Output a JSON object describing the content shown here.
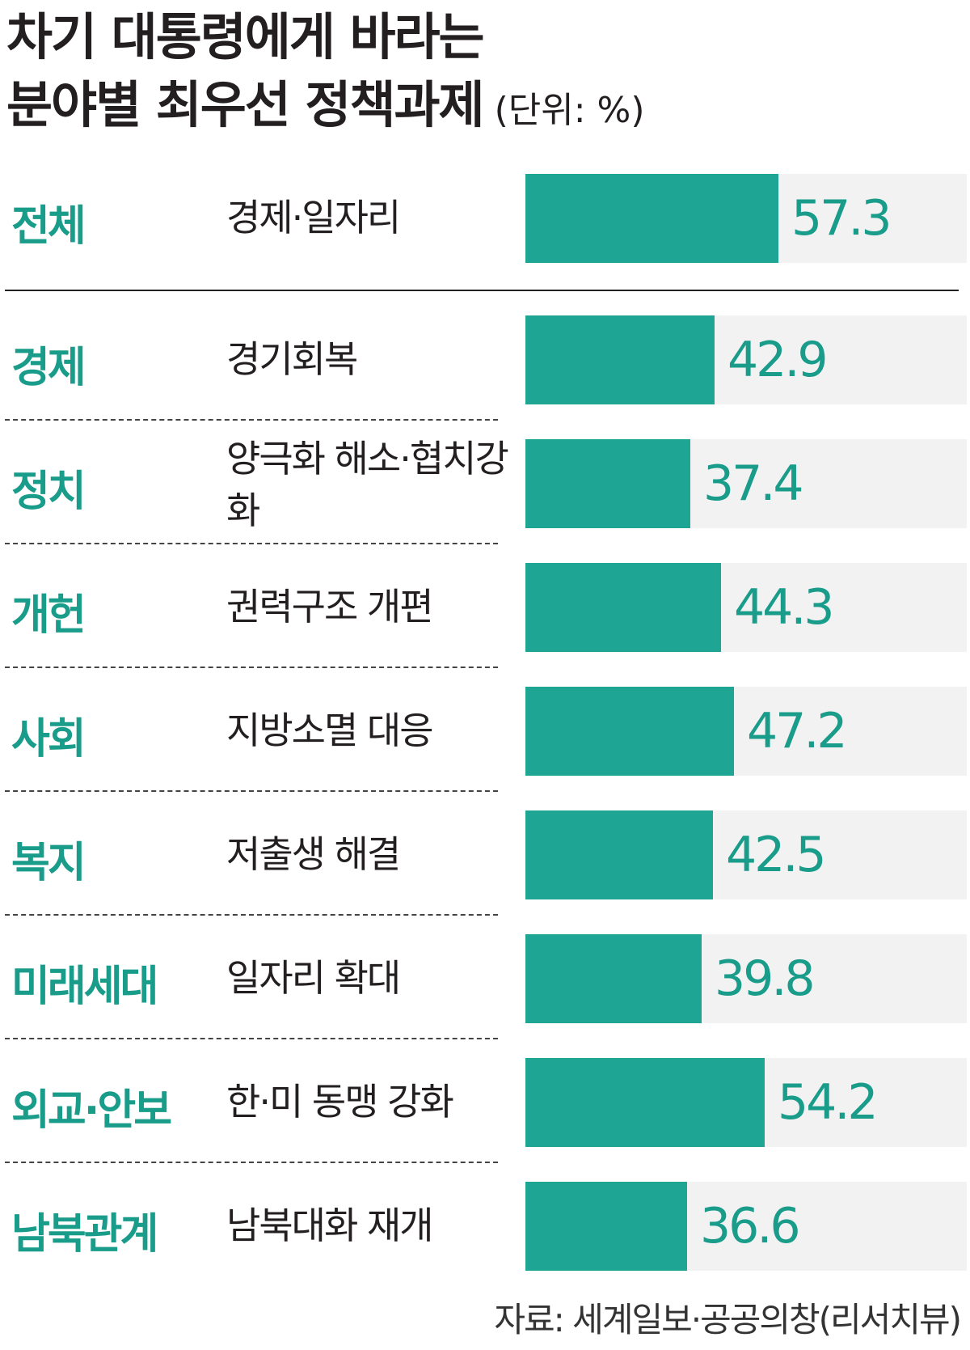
{
  "chart_data": {
    "type": "bar",
    "title_line1": "차기 대통령에게 바라는",
    "title_line2": "분야별 최우선 정책과제",
    "unit": "(단위: %)",
    "xlim": [
      0,
      100
    ],
    "rows": [
      {
        "category": "전체",
        "policy": "경제·일자리",
        "value": 57.3
      },
      {
        "category": "경제",
        "policy": "경기회복",
        "value": 42.9
      },
      {
        "category": "정치",
        "policy": "양극화 해소·협치강화",
        "value": 37.4
      },
      {
        "category": "개헌",
        "policy": "권력구조 개편",
        "value": 44.3
      },
      {
        "category": "사회",
        "policy": "지방소멸 대응",
        "value": 47.2
      },
      {
        "category": "복지",
        "policy": "저출생 해결",
        "value": 42.5
      },
      {
        "category": "미래세대",
        "policy": "일자리 확대",
        "value": 39.8
      },
      {
        "category": "외교·안보",
        "policy": "한·미 동맹 강화",
        "value": 54.2
      },
      {
        "category": "남북관계",
        "policy": "남북대화 재개",
        "value": 36.6
      }
    ],
    "source": "자료: 세계일보·공공의창(리서치뷰)"
  },
  "colors": {
    "bar": "#1fa593",
    "bar_background": "#f2f2f2",
    "category_text": "#1a9c8a",
    "value_text": "#1a9c8a"
  }
}
